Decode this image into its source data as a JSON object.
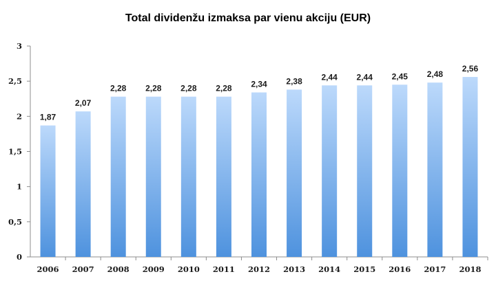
{
  "chart_data": {
    "type": "bar",
    "title": "Total dividenžu izmaksa par vienu akciju (EUR)",
    "xlabel": "",
    "ylabel": "",
    "categories": [
      "2006",
      "2007",
      "2008",
      "2009",
      "2010",
      "2011",
      "2012",
      "2013",
      "2014",
      "2015",
      "2016",
      "2017",
      "2018"
    ],
    "values": [
      1.87,
      2.07,
      2.28,
      2.28,
      2.28,
      2.28,
      2.34,
      2.38,
      2.44,
      2.44,
      2.45,
      2.48,
      2.56
    ],
    "value_labels": [
      "1,87",
      "2,07",
      "2,28",
      "2,28",
      "2,28",
      "2,28",
      "2,34",
      "2,38",
      "2,44",
      "2,44",
      "2,45",
      "2,48",
      "2,56"
    ],
    "ylim": [
      0,
      3
    ],
    "yticks": [
      0,
      0.5,
      1,
      1.5,
      2,
      2.5,
      3
    ],
    "ytick_labels": [
      "0",
      "0,5",
      "1",
      "1,5",
      "2",
      "2,5",
      "3"
    ],
    "grid": false,
    "legend": "none",
    "bar_gradient": [
      "#bcd9fb",
      "#4e92de"
    ]
  }
}
